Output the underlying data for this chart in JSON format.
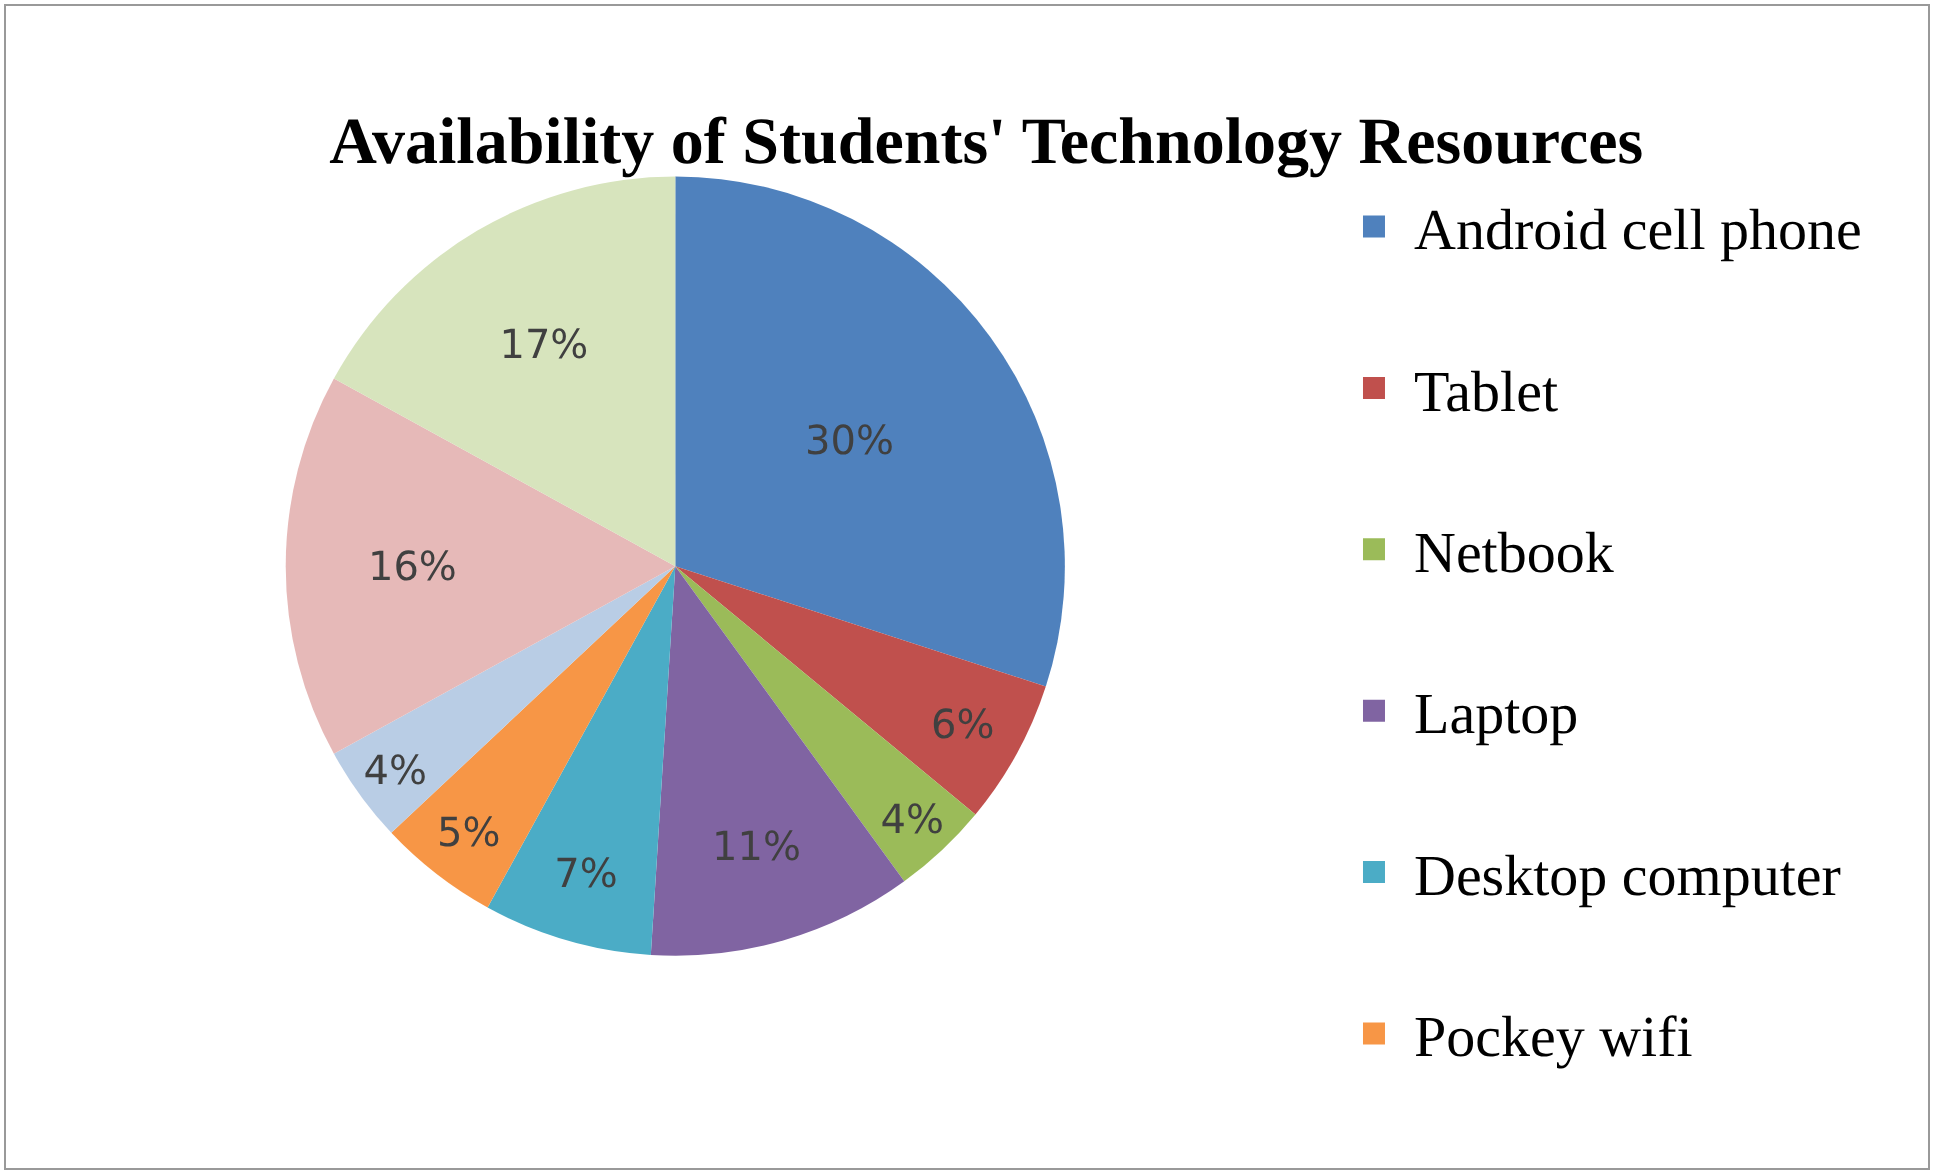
{
  "chart_data": {
    "type": "pie",
    "title": "Availability of Students' Technology Resources",
    "categories": [
      "Android cell phone",
      "Tablet",
      "Netbook",
      "Laptop",
      "Desktop computer",
      "Pockey wifi",
      null,
      null,
      null
    ],
    "values": [
      30,
      6,
      4,
      11,
      7,
      5,
      4,
      16,
      17
    ],
    "value_labels": [
      "30%",
      "6%",
      "4%",
      "11%",
      "7%",
      "5%",
      "4%",
      "16%",
      "17%"
    ],
    "colors": [
      "#4f81bd",
      "#c0504d",
      "#9bbb59",
      "#8064a2",
      "#4bacc6",
      "#f79646",
      "#b9cde5",
      "#e6b9b8",
      "#d7e4bd"
    ],
    "legend": "right"
  }
}
